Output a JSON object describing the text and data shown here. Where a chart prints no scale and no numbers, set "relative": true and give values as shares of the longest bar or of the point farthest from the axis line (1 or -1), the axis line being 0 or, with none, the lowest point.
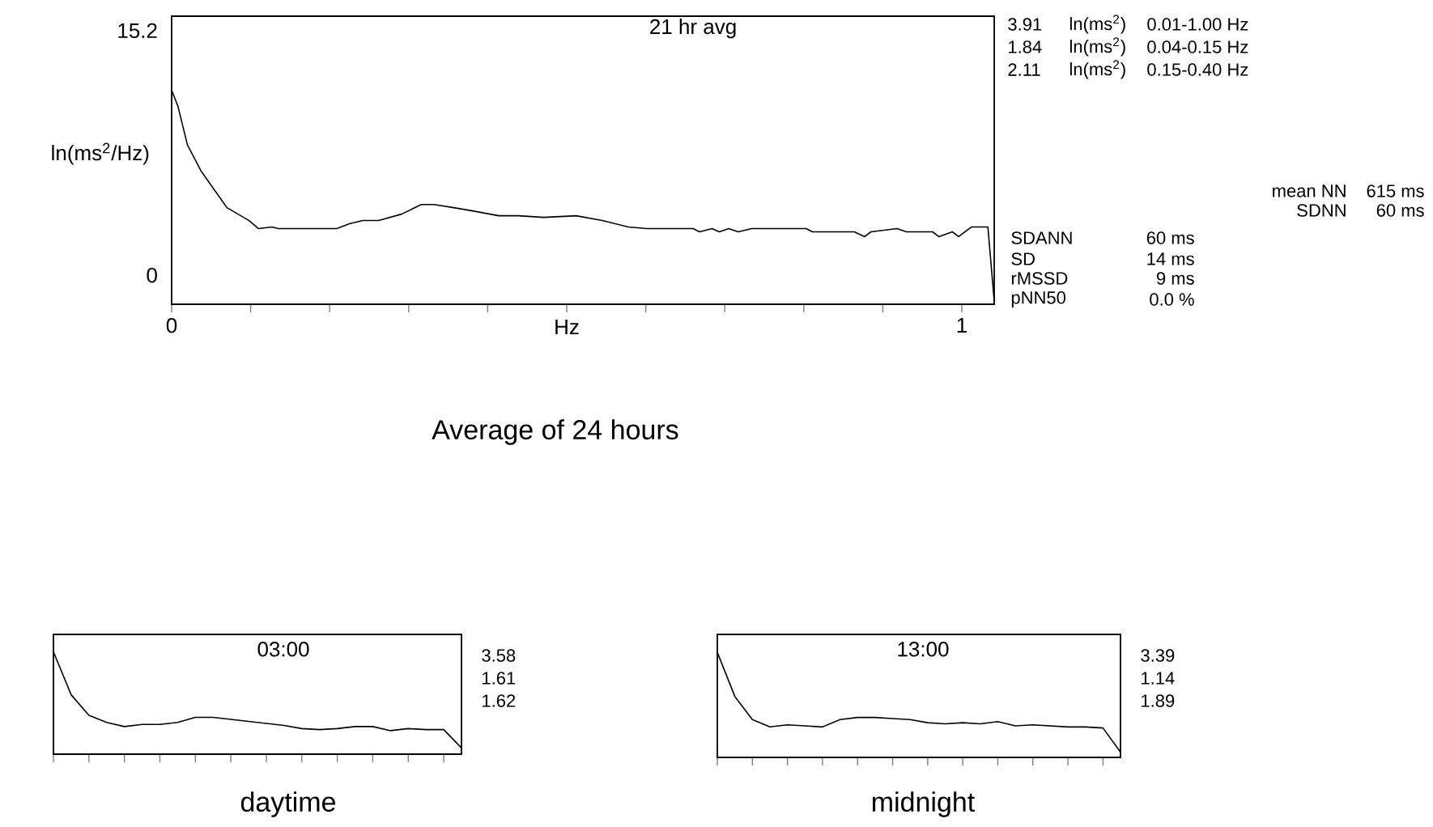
{
  "chart_data": [
    {
      "type": "line",
      "title": "21 hr avg",
      "xlabel": "Hz",
      "ylabel": "ln(ms$^{2}$/Hz)",
      "x": [
        0,
        0.008,
        0.02,
        0.037,
        0.07,
        0.098,
        0.11,
        0.127,
        0.135,
        0.209,
        0.225,
        0.242,
        0.262,
        0.291,
        0.316,
        0.332,
        0.357,
        0.381,
        0.414,
        0.439,
        0.471,
        0.512,
        0.545,
        0.578,
        0.602,
        0.66,
        0.668,
        0.684,
        0.693,
        0.705,
        0.717,
        0.734,
        0.803,
        0.811,
        0.864,
        0.877,
        0.885,
        0.918,
        0.93,
        0.963,
        0.971,
        0.988,
        0.996,
        1.012,
        1.033,
        1.041
      ],
      "series": [
        {
          "color": "#000000",
          "values": [
            11.5,
            10.5,
            8.1,
            6.5,
            4.2,
            3.4,
            2.9,
            3.0,
            2.9,
            2.9,
            3.2,
            3.4,
            3.4,
            3.8,
            4.4,
            4.4,
            4.2,
            4.0,
            3.7,
            3.7,
            3.6,
            3.7,
            3.4,
            3.0,
            2.9,
            2.9,
            2.7,
            2.9,
            2.7,
            2.9,
            2.7,
            2.9,
            2.9,
            2.7,
            2.7,
            2.4,
            2.7,
            2.9,
            2.7,
            2.7,
            2.4,
            2.7,
            2.4,
            3.0,
            3.0,
            -1.6
          ]
        }
      ],
      "xlim": [
        0,
        1.041
      ],
      "ylim": [
        -1.8,
        16.1
      ],
      "xticks": [
        0,
        {
          "value": 0.1,
          "label": null
        },
        {
          "value": 0.2,
          "label": null
        },
        {
          "value": 0.3,
          "label": null
        },
        {
          "value": 0.4,
          "label": null
        },
        {
          "value": 0.5,
          "label": null
        },
        {
          "value": 0.6,
          "label": null
        },
        {
          "value": 0.7,
          "label": null
        },
        {
          "value": 0.8,
          "label": null
        },
        {
          "value": 0.9,
          "label": null
        },
        1
      ],
      "yticks": [
        0,
        15.2
      ],
      "grid": false,
      "annotations": [
        "3.91",
        "ln(ms$^{2}$)",
        "0.01-1.00 Hz",
        "1.84",
        "ln(ms$^{2}$)",
        "0.04-0.15 Hz",
        "2.11",
        "ln(ms$^{2}$)",
        "0.15-0.40 Hz",
        "mean NN",
        "615 ms",
        "SDNN",
        "60 ms",
        "SDANN",
        "60 ms",
        "SD",
        "14 ms",
        "rMSSD",
        "9 ms",
        "pNN50",
        "0.0 %",
        "Average of 24 hours"
      ]
    },
    {
      "type": "line",
      "title": "03:00",
      "relative": true,
      "categories": [
        null,
        null,
        null,
        null,
        null,
        null,
        null,
        null,
        null,
        null,
        null,
        null,
        null,
        null,
        null,
        null,
        null,
        null,
        null,
        null,
        null,
        null,
        null,
        null
      ],
      "series": [
        {
          "color": "#000000",
          "values": [
            1.0,
            0.58,
            0.38,
            0.31,
            0.27,
            0.29,
            0.29,
            0.31,
            0.36,
            0.36,
            0.34,
            0.32,
            0.3,
            0.28,
            0.25,
            0.24,
            0.25,
            0.27,
            0.27,
            0.23,
            0.25,
            0.24,
            0.24,
            0.06
          ]
        }
      ],
      "annotations": [
        "3.58",
        "1.61",
        "1.62",
        "daytime"
      ]
    },
    {
      "type": "line",
      "title": "13:00",
      "relative": true,
      "categories": [
        null,
        null,
        null,
        null,
        null,
        null,
        null,
        null,
        null,
        null,
        null,
        null,
        null,
        null,
        null,
        null,
        null,
        null,
        null,
        null,
        null,
        null,
        null,
        null
      ],
      "series": [
        {
          "color": "#000000",
          "values": [
            1.0,
            0.58,
            0.36,
            0.29,
            0.31,
            0.3,
            0.29,
            0.36,
            0.38,
            0.38,
            0.37,
            0.36,
            0.33,
            0.32,
            0.33,
            0.32,
            0.34,
            0.3,
            0.31,
            0.3,
            0.29,
            0.29,
            0.28,
            0.05
          ]
        }
      ],
      "annotations": [
        "3.39",
        "1.14",
        "1.89",
        "midnight"
      ]
    }
  ]
}
